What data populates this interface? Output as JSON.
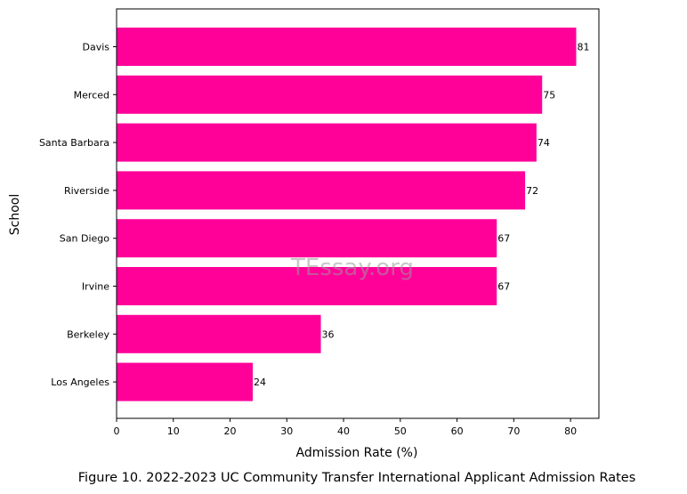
{
  "chart_data": {
    "type": "bar",
    "orientation": "horizontal",
    "categories": [
      "Davis",
      "Merced",
      "Santa Barbara",
      "Riverside",
      "San Diego",
      "Irvine",
      "Berkeley",
      "Los Angeles"
    ],
    "values": [
      81,
      75,
      74,
      72,
      67,
      67,
      36,
      24
    ],
    "data_labels": [
      "81",
      "75",
      "74",
      "72",
      "67",
      "67",
      "36",
      "24"
    ],
    "xlabel": "Admission Rate (%)",
    "ylabel": "School",
    "xlim": [
      0,
      85
    ],
    "xticks": [
      0,
      10,
      20,
      30,
      40,
      50,
      60,
      70,
      80
    ],
    "xtick_labels": [
      "0",
      "10",
      "20",
      "30",
      "40",
      "50",
      "60",
      "70",
      "80"
    ],
    "bar_color": "#ff0099",
    "grid": false,
    "legend": "none"
  },
  "caption": "Figure 10. 2022-2023 UC Community Transfer International Applicant Admission Rates",
  "watermark": "TEssay.org"
}
